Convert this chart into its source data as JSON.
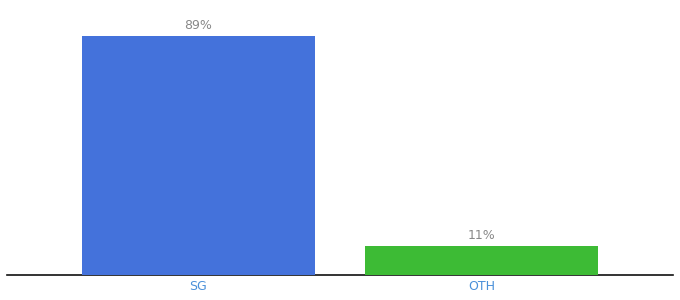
{
  "categories": [
    "SG",
    "OTH"
  ],
  "values": [
    89,
    11
  ],
  "bar_colors": [
    "#4472db",
    "#3dbb35"
  ],
  "labels": [
    "89%",
    "11%"
  ],
  "background_color": "#ffffff",
  "ylim": [
    0,
    100
  ],
  "bar_width": 0.28,
  "label_fontsize": 9,
  "tick_fontsize": 9,
  "tick_color": "#4a90d9",
  "label_color": "#888888",
  "axis_line_color": "#111111",
  "x_positions": [
    0.28,
    0.62
  ]
}
